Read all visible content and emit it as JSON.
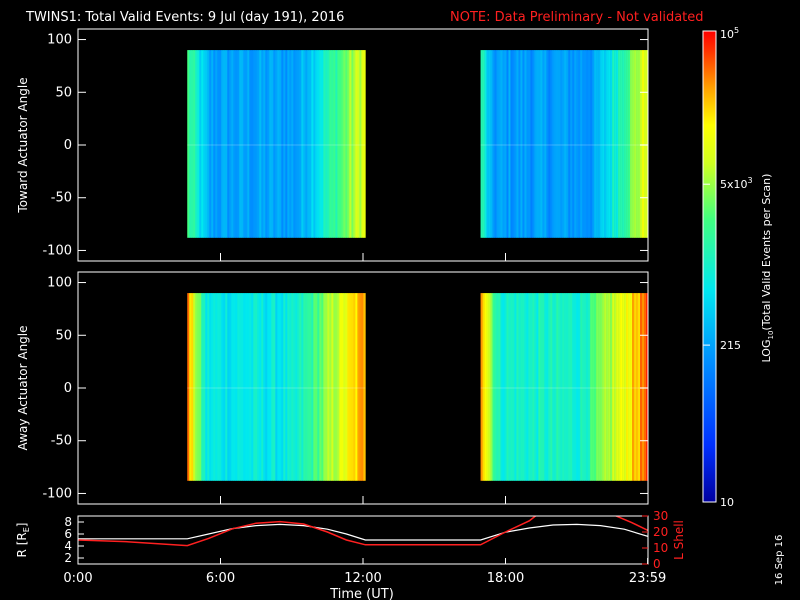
{
  "header": {
    "title": "TWINS1: Total Valid Events:  9 Jul (day 191), 2016",
    "note": "NOTE: Data Preliminary - Not validated"
  },
  "colors": {
    "background": "#000000",
    "note": "#ff2020",
    "axes": "#ffffff",
    "r_line": "#ffffff",
    "lshell_line": "#ff2020"
  },
  "chart_data": [
    {
      "type": "heatmap",
      "ylabel": "Toward Actuator Angle",
      "ylim": [
        -110,
        110
      ],
      "yticks": [
        "100",
        "50",
        "0",
        "-50",
        "-100"
      ],
      "x_range_hours": [
        0,
        24
      ],
      "data_blocks_hours": [
        [
          4.6,
          12.1
        ],
        [
          16.95,
          24.0
        ]
      ],
      "angle_range": [
        -88,
        90
      ],
      "dominant_level": "blue-cyan, rising to yellow at block edges"
    },
    {
      "type": "heatmap",
      "ylabel": "Away Actuator Angle",
      "ylim": [
        -110,
        110
      ],
      "yticks": [
        "100",
        "50",
        "0",
        "-50",
        "-100"
      ],
      "x_range_hours": [
        0,
        24
      ],
      "data_blocks_hours": [
        [
          4.6,
          12.1
        ],
        [
          16.95,
          24.0
        ]
      ],
      "angle_range": [
        -88,
        90
      ],
      "dominant_level": "orange edges, green-cyan interior"
    },
    {
      "type": "line",
      "ylabel": "R [R",
      "ylabel_sub": "E",
      "ylabel_close": "]",
      "y2label": "L Shell",
      "ylim": [
        1,
        9
      ],
      "y2lim": [
        0,
        30
      ],
      "yticks": [
        "8",
        "6",
        "4",
        "2"
      ],
      "y2ticks": [
        "30",
        "20",
        "10",
        "0"
      ],
      "xlabel": "Time (UT)",
      "xticks": [
        "0:00",
        "6:00",
        "12:00",
        "18:00",
        "23:59"
      ],
      "series": [
        {
          "name": "R",
          "x": [
            0,
            2,
            4.6,
            5.5,
            6.5,
            7.5,
            8.5,
            9.5,
            10.5,
            11.3,
            12.1,
            14,
            16.95,
            18,
            19,
            20,
            21,
            22,
            23,
            24
          ],
          "y": [
            5.2,
            5.2,
            5.2,
            6.0,
            6.9,
            7.4,
            7.6,
            7.4,
            6.8,
            6.0,
            5.0,
            5.0,
            5.0,
            6.3,
            7.0,
            7.5,
            7.6,
            7.4,
            6.8,
            5.6
          ]
        },
        {
          "name": "L Shell",
          "x": [
            0,
            2,
            4.6,
            5.5,
            6.5,
            7.5,
            8.5,
            9.5,
            10.5,
            11.3,
            12.1,
            14,
            16.95,
            18,
            19,
            19.35,
            22.5,
            23.3,
            24
          ],
          "y": [
            15,
            14,
            11.5,
            16,
            22,
            25.5,
            26.5,
            25,
            20,
            15,
            12,
            12,
            12,
            20,
            27,
            31,
            31,
            26,
            21
          ]
        }
      ]
    }
  ],
  "colorbar": {
    "label_parts": [
      "LOG",
      "10",
      "(Total Valid Events per Scan)"
    ],
    "ticks": [
      {
        "base": "10",
        "exp": "5",
        "value": 100000
      },
      {
        "base": "5x10",
        "exp": "3",
        "value": 5000
      },
      {
        "base": "215",
        "exp": "",
        "value": 215
      },
      {
        "base": "10",
        "exp": "",
        "value": 10
      }
    ],
    "range": [
      10,
      100000
    ]
  },
  "footer": {
    "date_stamp": "16 Sep 16"
  }
}
